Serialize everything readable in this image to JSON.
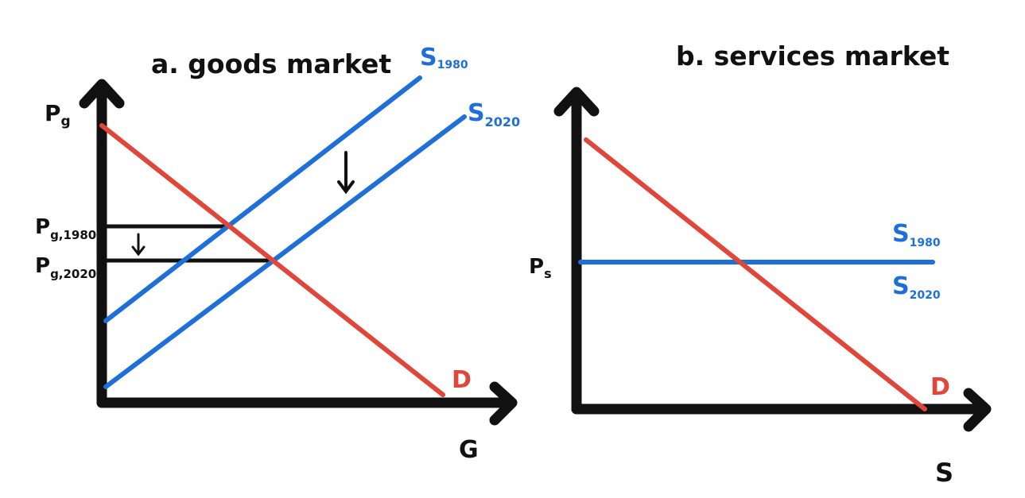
{
  "colors": {
    "axis": "#111111",
    "supply": "#1f6fd8",
    "demand": "#e0463a",
    "background": "#ffffff"
  },
  "panel_a": {
    "title": "a. goods market",
    "y_axis_label": {
      "main": "P",
      "sub": "g"
    },
    "x_axis_label": "G",
    "supply_1980_label": {
      "main": "S",
      "sub": "1980"
    },
    "supply_2020_label": {
      "main": "S",
      "sub": "2020"
    },
    "demand_label": "D",
    "price_1980_label": {
      "main": "P",
      "sub": "g,1980"
    },
    "price_2020_label": {
      "main": "P",
      "sub": "g,2020"
    },
    "shift_arrow_icon": "down-arrow-icon",
    "price_drop_arrow_icon": "down-arrow-icon"
  },
  "panel_b": {
    "title": "b. services market",
    "y_axis_label": {
      "main": "P",
      "sub": "s"
    },
    "x_axis_label": "S",
    "supply_1980_label": {
      "main": "S",
      "sub": "1980"
    },
    "supply_2020_label": {
      "main": "S",
      "sub": "2020"
    },
    "demand_label": "D"
  }
}
